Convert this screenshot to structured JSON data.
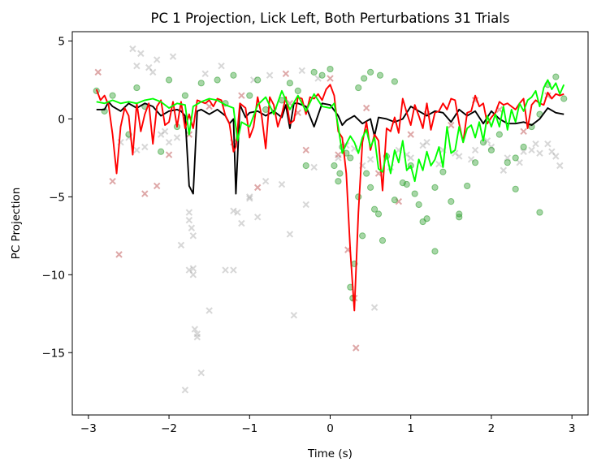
{
  "chart_data": {
    "type": "scatter",
    "title": "PC 1 Projection, Lick Left, Both Perturbations 31 Trials",
    "xlabel": "Time (s)",
    "ylabel": "PC Projection",
    "xlim": [
      -3.2,
      3.2
    ],
    "ylim": [
      -19,
      5.6
    ],
    "xticks": [
      -3,
      -2,
      -1,
      0,
      1,
      2,
      3
    ],
    "yticks": [
      5,
      0,
      -5,
      -10,
      -15
    ],
    "xtick_labels": [
      "−3",
      "−2",
      "−1",
      "0",
      "1",
      "2",
      "3"
    ],
    "ytick_labels": [
      "5",
      "0",
      "−5",
      "−10",
      "−15"
    ],
    "grid": false,
    "legend": "none",
    "colors": {
      "gray_points": "#a0a0a0",
      "red_points": "#b03030",
      "green_points": "#2e9e2e",
      "black_line": "#000000",
      "red_line": "#ff0000",
      "green_line": "#00ff00"
    },
    "series": [
      {
        "kind": "line",
        "color": "#000000",
        "x": [
          -2.9,
          -2.8,
          -2.75,
          -2.7,
          -2.6,
          -2.5,
          -2.4,
          -2.3,
          -2.2,
          -2.1,
          -2.0,
          -1.9,
          -1.85,
          -1.8,
          -1.75,
          -1.7,
          -1.65,
          -1.6,
          -1.5,
          -1.4,
          -1.3,
          -1.25,
          -1.2,
          -1.17,
          -1.12,
          -1.05,
          -1.0,
          -0.9,
          -0.8,
          -0.7,
          -0.6,
          -0.55,
          -0.5,
          -0.45,
          -0.4,
          -0.3,
          -0.2,
          -0.1,
          0.0,
          0.1,
          0.15,
          0.2,
          0.3,
          0.4,
          0.5,
          0.55,
          0.6,
          0.7,
          0.8,
          0.9,
          1.0,
          1.1,
          1.2,
          1.3,
          1.4,
          1.5,
          1.6,
          1.7,
          1.8,
          1.9,
          2.0,
          2.1,
          2.2,
          2.3,
          2.4,
          2.5,
          2.6,
          2.7,
          2.8,
          2.9
        ],
        "y": [
          0.6,
          0.6,
          1.1,
          0.8,
          0.5,
          1.0,
          0.7,
          1.0,
          0.8,
          0.2,
          0.5,
          0.6,
          0.5,
          0.2,
          -4.3,
          -4.8,
          0.5,
          0.6,
          0.3,
          0.6,
          0.2,
          -0.3,
          0.0,
          -4.8,
          0.9,
          0.1,
          0.4,
          0.5,
          0.2,
          0.5,
          0.1,
          0.9,
          -0.6,
          1.0,
          1.0,
          0.8,
          -0.5,
          1.0,
          0.9,
          0.2,
          -0.4,
          -0.1,
          0.2,
          -0.3,
          0.0,
          -1.1,
          0.1,
          0.0,
          -0.2,
          0.0,
          0.8,
          0.5,
          0.2,
          0.5,
          0.4,
          -0.2,
          0.6,
          0.2,
          0.5,
          -0.3,
          0.5,
          0.0,
          -0.3,
          -0.3,
          -0.2,
          -0.4,
          0.0,
          0.7,
          0.4,
          0.3
        ]
      },
      {
        "kind": "line",
        "color": "#ff0000",
        "x": [
          -2.9,
          -2.85,
          -2.8,
          -2.75,
          -2.7,
          -2.65,
          -2.6,
          -2.55,
          -2.5,
          -2.45,
          -2.4,
          -2.35,
          -2.3,
          -2.25,
          -2.2,
          -2.15,
          -2.1,
          -2.05,
          -2.0,
          -1.95,
          -1.9,
          -1.85,
          -1.8,
          -1.75,
          -1.7,
          -1.65,
          -1.6,
          -1.55,
          -1.5,
          -1.45,
          -1.4,
          -1.35,
          -1.3,
          -1.25,
          -1.2,
          -1.17,
          -1.12,
          -1.05,
          -1.0,
          -0.95,
          -0.9,
          -0.85,
          -0.8,
          -0.75,
          -0.7,
          -0.65,
          -0.6,
          -0.55,
          -0.5,
          -0.45,
          -0.4,
          -0.35,
          -0.3,
          -0.25,
          -0.2,
          -0.15,
          -0.1,
          -0.05,
          0.0,
          0.05,
          0.1,
          0.15,
          0.2,
          0.25,
          0.3,
          0.35,
          0.4,
          0.45,
          0.5,
          0.55,
          0.6,
          0.65,
          0.7,
          0.75,
          0.8,
          0.85,
          0.9,
          0.95,
          1.0,
          1.05,
          1.1,
          1.15,
          1.2,
          1.25,
          1.3,
          1.35,
          1.4,
          1.45,
          1.5,
          1.55,
          1.6,
          1.65,
          1.7,
          1.75,
          1.8,
          1.85,
          1.9,
          1.95,
          2.0,
          2.05,
          2.1,
          2.15,
          2.2,
          2.25,
          2.3,
          2.35,
          2.4,
          2.45,
          2.5,
          2.55,
          2.6,
          2.65,
          2.7,
          2.75,
          2.8,
          2.85,
          2.9
        ],
        "y": [
          1.9,
          1.2,
          1.5,
          0.9,
          -1.0,
          -3.5,
          -0.5,
          0.7,
          0.2,
          -2.3,
          1.0,
          -0.8,
          0.3,
          1.0,
          -1.6,
          0.8,
          1.2,
          -0.4,
          -0.2,
          1.1,
          -0.5,
          1.1,
          -0.6,
          0.3,
          -0.6,
          1.2,
          1.1,
          1.0,
          1.2,
          0.8,
          1.3,
          1.2,
          0.2,
          -0.3,
          -2.1,
          -1.8,
          1.0,
          0.7,
          -1.2,
          -0.5,
          1.4,
          0.2,
          -1.9,
          1.4,
          0.9,
          -0.5,
          0.3,
          1.4,
          -0.3,
          -0.1,
          1.4,
          1.3,
          0.3,
          1.4,
          1.3,
          1.6,
          1.2,
          1.9,
          2.2,
          1.5,
          -0.8,
          -1.2,
          -3.5,
          -8.5,
          -12.3,
          -6.0,
          -1.5,
          -0.2,
          -2.0,
          -1.0,
          -1.4,
          -4.6,
          -0.6,
          -0.8,
          0.1,
          -0.9,
          1.3,
          0.4,
          -0.4,
          0.9,
          0.2,
          -0.6,
          1.0,
          -0.7,
          0.4,
          0.5,
          1.0,
          0.6,
          1.3,
          1.2,
          -0.3,
          -1.5,
          0.4,
          0.5,
          1.5,
          0.8,
          1.0,
          -0.3,
          0.1,
          0.4,
          1.1,
          0.9,
          1.0,
          0.8,
          0.6,
          1.0,
          1.3,
          -0.6,
          0.9,
          1.2,
          1.0,
          0.9,
          1.7,
          1.3,
          1.6,
          1.5,
          1.6
        ]
      },
      {
        "kind": "line",
        "color": "#00ff00",
        "x": [
          -2.9,
          -2.8,
          -2.7,
          -2.6,
          -2.5,
          -2.4,
          -2.3,
          -2.2,
          -2.1,
          -2.0,
          -1.9,
          -1.8,
          -1.75,
          -1.7,
          -1.6,
          -1.5,
          -1.4,
          -1.3,
          -1.2,
          -1.15,
          -1.1,
          -1.0,
          -0.9,
          -0.8,
          -0.7,
          -0.6,
          -0.5,
          -0.4,
          -0.3,
          -0.2,
          -0.1,
          0.0,
          0.05,
          0.1,
          0.15,
          0.2,
          0.25,
          0.3,
          0.35,
          0.4,
          0.45,
          0.5,
          0.55,
          0.6,
          0.65,
          0.7,
          0.75,
          0.8,
          0.85,
          0.9,
          0.95,
          1.0,
          1.05,
          1.1,
          1.15,
          1.2,
          1.25,
          1.3,
          1.35,
          1.4,
          1.45,
          1.5,
          1.55,
          1.6,
          1.65,
          1.7,
          1.75,
          1.8,
          1.85,
          1.9,
          1.95,
          2.0,
          2.05,
          2.1,
          2.15,
          2.2,
          2.25,
          2.3,
          2.35,
          2.4,
          2.45,
          2.5,
          2.55,
          2.6,
          2.65,
          2.7,
          2.75,
          2.8,
          2.85,
          2.9
        ],
        "y": [
          1.1,
          1.0,
          1.2,
          1.0,
          1.1,
          1.0,
          1.2,
          1.3,
          1.1,
          0.7,
          1.0,
          0.9,
          -1.0,
          0.8,
          1.1,
          1.3,
          1.2,
          0.9,
          0.7,
          -1.4,
          -0.2,
          -0.5,
          0.9,
          1.4,
          0.3,
          1.8,
          0.6,
          1.5,
          0.5,
          1.6,
          0.8,
          0.7,
          1.0,
          -0.5,
          -2.2,
          -1.6,
          -1.1,
          -1.5,
          -2.2,
          -1.2,
          -0.7,
          -1.8,
          -1.2,
          -3.2,
          -3.4,
          -2.2,
          -3.5,
          -2.0,
          -2.8,
          -1.4,
          -3.3,
          -3.0,
          -4.0,
          -2.6,
          -3.3,
          -2.1,
          -3.0,
          -2.6,
          -1.8,
          -3.1,
          -0.5,
          -2.2,
          -2.0,
          -0.5,
          -1.5,
          -0.6,
          -0.4,
          -1.2,
          -0.2,
          -1.4,
          0.2,
          -0.5,
          0.3,
          -0.5,
          0.8,
          -0.7,
          0.6,
          -0.2,
          1.0,
          0.5,
          1.2,
          1.4,
          1.8,
          0.8,
          2.0,
          2.5,
          1.9,
          2.3,
          1.6,
          2.2
        ]
      }
    ],
    "scatter_series": [
      {
        "kind": "scatter",
        "marker": "x",
        "color": "#a0a0a0",
        "x": [
          -2.6,
          -2.5,
          -2.4,
          -2.3,
          -2.1,
          -2.05,
          -2.0,
          -1.9,
          -1.75,
          -1.75,
          -1.72,
          -1.7,
          -1.7,
          -1.68,
          -1.65,
          -1.65,
          -1.6,
          -1.5,
          -1.3,
          -1.2,
          -1.15,
          -1.1,
          -1.0,
          -0.9,
          -0.8,
          -0.5,
          -0.45,
          -0.3,
          0.1,
          0.2,
          0.4,
          0.55,
          0.85,
          1.0,
          1.2,
          1.4,
          1.6,
          1.8,
          2.0,
          2.2,
          2.4,
          2.5,
          2.6,
          2.7,
          2.8,
          2.85,
          -2.4,
          -2.2,
          -2.15,
          -1.8,
          -1.85,
          -1.75,
          -1.7,
          -1.2,
          -1.0,
          -0.6,
          -0.2,
          -2.45,
          -2.35,
          -2.25,
          -1.95,
          -1.55,
          -1.35,
          -0.95,
          -0.75,
          -0.35,
          -0.15,
          0.3,
          0.5,
          0.75,
          0.95,
          1.15,
          1.35,
          1.55,
          1.75,
          1.95,
          2.15,
          2.35,
          2.55,
          2.75
        ],
        "y": [
          -1.5,
          -1.2,
          -2.0,
          -1.8,
          -1.0,
          -0.8,
          -1.5,
          -1.2,
          -6.0,
          -6.5,
          -7.0,
          -7.5,
          -9.6,
          -13.5,
          -13.8,
          -14.0,
          -16.3,
          -12.3,
          -9.7,
          -5.9,
          -6.0,
          -6.7,
          -5.0,
          -6.3,
          -4.0,
          -7.4,
          -12.6,
          -5.5,
          -2.5,
          -1.7,
          -3.0,
          -12.1,
          -2.0,
          -2.5,
          -1.5,
          -2.0,
          -2.4,
          -2.0,
          -1.8,
          -2.5,
          -2.1,
          -2.0,
          -2.2,
          -1.6,
          -2.4,
          -3.0,
          3.4,
          3.0,
          3.8,
          -17.4,
          -8.1,
          -9.7,
          -10.0,
          -9.7,
          -5.1,
          -4.2,
          -3.1,
          4.5,
          4.2,
          3.3,
          4.0,
          2.9,
          3.4,
          2.5,
          2.8,
          3.1,
          2.6,
          -1.9,
          -2.6,
          -3.1,
          -2.3,
          -1.7,
          -2.9,
          -2.2,
          -2.6,
          -1.4,
          -3.3,
          -2.8,
          -1.6,
          -2.1
        ]
      },
      {
        "kind": "scatter",
        "marker": "x",
        "color": "#b03030",
        "x": [
          -2.88,
          -2.7,
          -2.62,
          -2.3,
          -2.15,
          -2.0,
          -1.75,
          -1.5,
          -1.2,
          -1.1,
          -0.9,
          -0.7,
          -0.55,
          -0.5,
          -0.4,
          -0.3,
          0.0,
          0.1,
          0.22,
          0.3,
          0.32,
          0.45,
          0.6,
          0.85,
          1.0,
          1.2,
          1.5,
          1.8,
          2.1,
          2.4,
          2.7
        ],
        "y": [
          3.0,
          -4.0,
          -8.7,
          -4.8,
          -4.3,
          -2.3,
          -1.0,
          0.8,
          -1.5,
          1.5,
          -4.4,
          0.5,
          2.9,
          1.0,
          0.4,
          -2.0,
          2.6,
          -2.3,
          -8.4,
          -11.5,
          -14.7,
          0.7,
          -3.5,
          -5.3,
          -1.0,
          0.3,
          -0.4,
          1.2,
          0.6,
          -0.8,
          1.5
        ]
      },
      {
        "kind": "scatter",
        "marker": "o",
        "color": "#2e9e2e",
        "x": [
          -2.9,
          -2.8,
          -2.7,
          -2.5,
          -2.4,
          -2.3,
          -2.1,
          -2.0,
          -1.9,
          -1.8,
          -1.6,
          -1.4,
          -1.3,
          -1.2,
          -1.0,
          -0.9,
          -0.8,
          -0.6,
          -0.5,
          -0.4,
          -0.2,
          -0.1,
          0.0,
          0.05,
          0.1,
          0.12,
          0.15,
          0.2,
          0.25,
          0.28,
          0.3,
          0.35,
          0.4,
          0.45,
          0.5,
          0.55,
          0.6,
          0.65,
          0.7,
          0.8,
          0.9,
          1.0,
          1.1,
          1.2,
          1.3,
          1.4,
          1.5,
          1.6,
          1.7,
          1.8,
          1.9,
          2.0,
          2.1,
          2.2,
          2.3,
          2.4,
          2.5,
          2.6,
          2.7,
          2.8,
          2.9,
          -0.3,
          0.25,
          0.35,
          0.42,
          0.5,
          0.62,
          0.8,
          0.95,
          1.05,
          1.15,
          1.3,
          1.6,
          2.3,
          2.6
        ],
        "y": [
          1.8,
          0.5,
          1.5,
          -1.0,
          2.0,
          0.8,
          -2.1,
          2.5,
          -0.5,
          1.5,
          2.3,
          2.5,
          1.0,
          2.8,
          1.5,
          2.5,
          0.6,
          1.2,
          2.3,
          1.8,
          3.0,
          2.8,
          3.2,
          -3.0,
          -4.0,
          -3.5,
          -1.8,
          -2.2,
          -10.8,
          -11.5,
          -9.3,
          -5.0,
          -7.5,
          -3.5,
          -4.4,
          -5.8,
          -6.1,
          -7.8,
          -2.4,
          -5.2,
          -4.1,
          -3.0,
          -5.5,
          -6.4,
          -8.5,
          -3.4,
          -5.3,
          -6.3,
          -4.3,
          -2.8,
          -1.5,
          -2.0,
          -1.0,
          -2.8,
          -2.5,
          -1.8,
          -0.5,
          0.3,
          2.2,
          2.7,
          1.3,
          -3.0,
          -2.5,
          2.0,
          2.6,
          3.0,
          2.8,
          2.4,
          -4.2,
          -4.8,
          -6.6,
          -4.4,
          -6.1,
          -4.5,
          -6.0
        ]
      }
    ]
  }
}
